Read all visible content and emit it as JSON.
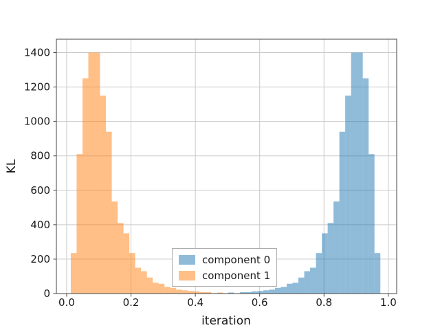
{
  "chart_data": {
    "type": "bar",
    "subtype": "histogram",
    "title": "",
    "xlabel": "iteration",
    "ylabel": "KL",
    "xlim": [
      -0.032,
      1.026
    ],
    "ylim": [
      0,
      1478
    ],
    "grid": true,
    "grid_color": "#c9c9c9",
    "spine_color": "#464646",
    "text_color": "#1a1a1a",
    "xticks": [
      0.0,
      0.2,
      0.4,
      0.6,
      0.8,
      1.0
    ],
    "xtick_labels": [
      "0.0",
      "0.2",
      "0.4",
      "0.6",
      "0.8",
      "1.0"
    ],
    "yticks": [
      0,
      200,
      400,
      600,
      800,
      1000,
      1200,
      1400
    ],
    "ytick_labels": [
      "0",
      "200",
      "400",
      "600",
      "800",
      "1000",
      "1200",
      "1400"
    ],
    "bin_width": 0.0182,
    "bar_alpha": 0.5,
    "series": [
      {
        "name": "component 0",
        "color": "#1f77b4",
        "bin_start": 0.502,
        "heights": [
          6,
          2,
          8,
          8,
          13,
          15,
          19,
          23,
          33,
          39,
          57,
          63,
          93,
          130,
          150,
          235,
          350,
          410,
          535,
          940,
          1150,
          1400,
          1400,
          1250,
          810,
          235
        ]
      },
      {
        "name": "component 1",
        "color": "#ff7f0e",
        "bin_start": 0.0128,
        "heights": [
          235,
          810,
          1250,
          1400,
          1400,
          1150,
          940,
          535,
          410,
          350,
          235,
          150,
          130,
          93,
          63,
          57,
          39,
          33,
          23,
          19,
          15,
          13,
          8,
          8,
          2,
          6
        ]
      }
    ],
    "legend": {
      "position": "lower center",
      "entries": [
        {
          "label": "component 0",
          "color": "#1f77b4"
        },
        {
          "label": "component 1",
          "color": "#ff7f0e"
        }
      ]
    }
  }
}
